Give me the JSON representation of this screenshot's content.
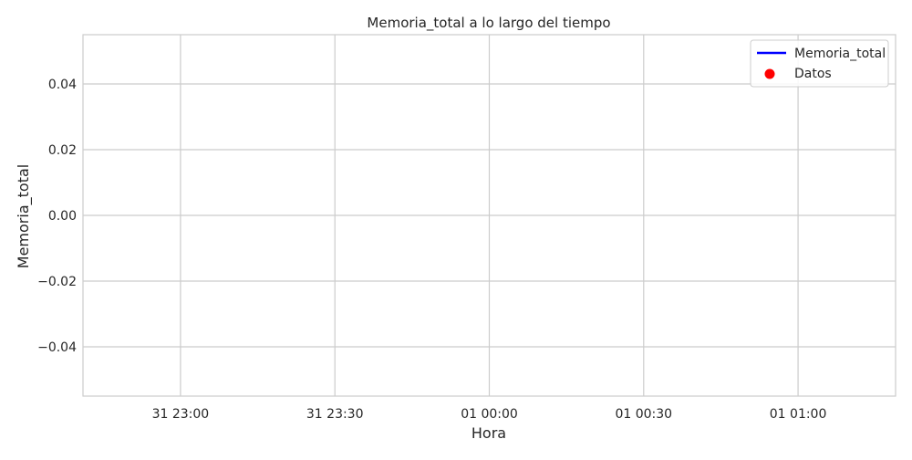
{
  "chart_data": {
    "type": "line",
    "title": "Memoria_total a lo largo del tiempo",
    "xlabel": "Hora",
    "ylabel": "Memoria_total",
    "x_ticks": [
      "31 23:00",
      "31 23:30",
      "01 00:00",
      "01 00:30",
      "01 01:00"
    ],
    "y_ticks": [
      "0.04",
      "0.02",
      "0.00",
      "−0.02",
      "−0.04"
    ],
    "y_tick_values": [
      0.04,
      0.02,
      0.0,
      -0.02,
      -0.04
    ],
    "ylim": [
      -0.055,
      0.055
    ],
    "grid": true,
    "legend_position": "top-right",
    "series": [
      {
        "name": "Memoria_total",
        "kind": "line",
        "color": "#0000ff",
        "values": []
      },
      {
        "name": "Datos",
        "kind": "scatter",
        "color": "#ff0000",
        "values": []
      }
    ]
  }
}
